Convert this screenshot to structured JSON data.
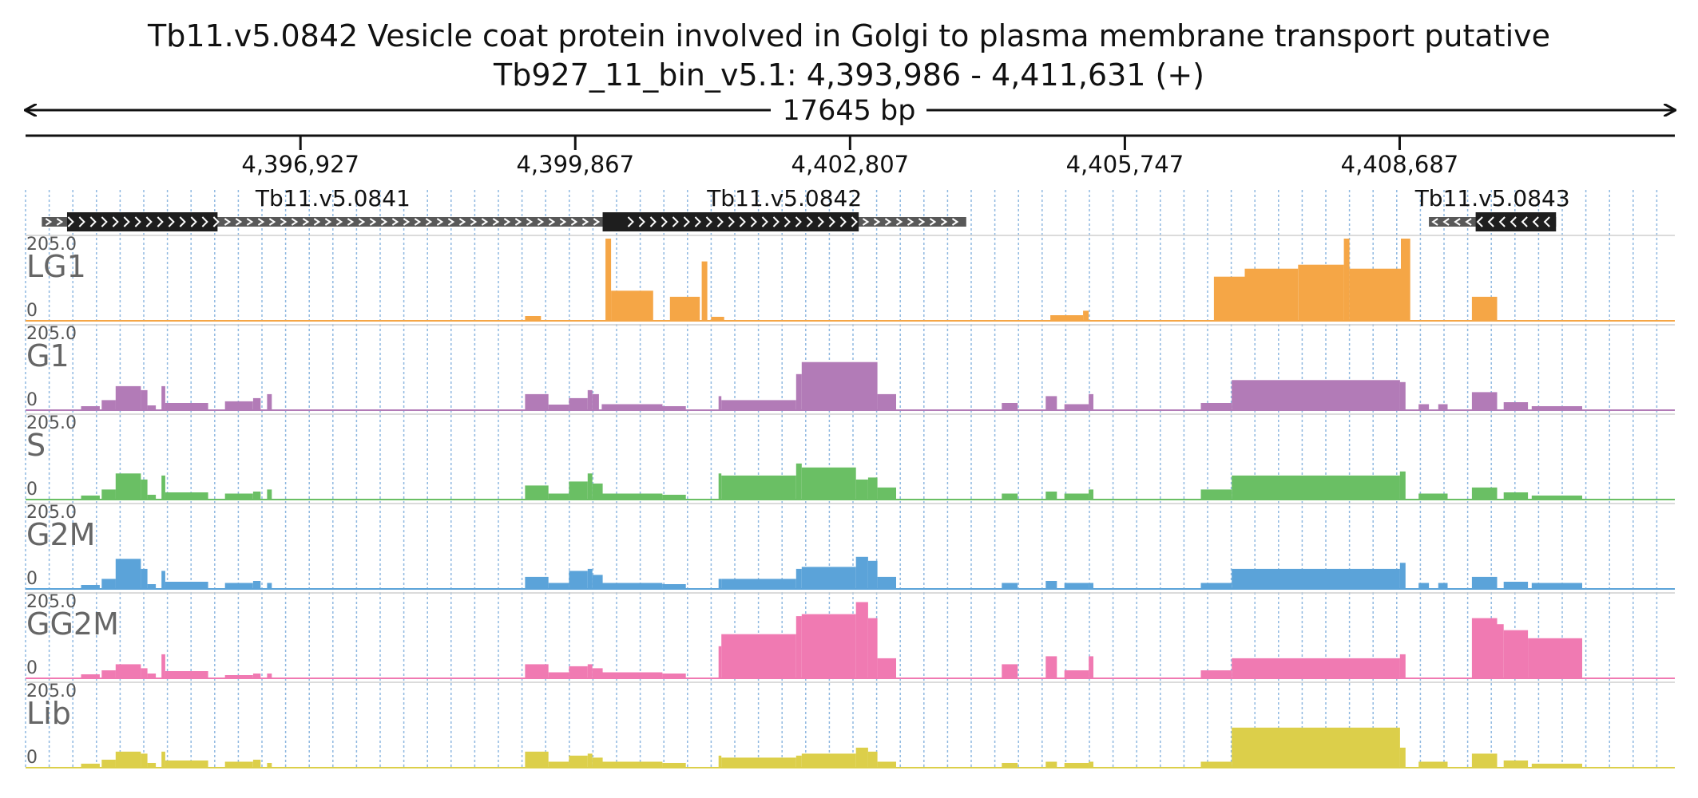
{
  "header": {
    "title": "Tb11.v5.0842  Vesicle coat protein involved in Golgi to plasma membrane transport  putative",
    "locus": "Tb927_11_bin_v5.1: 4,393,986 - 4,411,631 (+)",
    "span": "17645 bp"
  },
  "ruler": {
    "start": 4393986,
    "end": 4411631,
    "ticks": [
      {
        "pos": 4396927,
        "label": "4,396,927"
      },
      {
        "pos": 4399867,
        "label": "4,399,867"
      },
      {
        "pos": 4402807,
        "label": "4,402,807"
      },
      {
        "pos": 4405747,
        "label": "4,405,747"
      },
      {
        "pos": 4408687,
        "label": "4,408,687"
      }
    ]
  },
  "genes": [
    {
      "name": "Tb11.v5.0841",
      "strand": "+",
      "utr": [
        4394160,
        4400390
      ],
      "cds": [
        4394430,
        4396040
      ]
    },
    {
      "name": "Tb11.v5.0842",
      "strand": "+",
      "utr": [
        4400390,
        4404050
      ],
      "cds": [
        4400160,
        4402900
      ]
    },
    {
      "name": "Tb11.v5.0843",
      "strand": "-",
      "utr": [
        4409000,
        4410360
      ],
      "cds": [
        4409500,
        4410360
      ]
    }
  ],
  "colors": {
    "LG1": "#f5a646",
    "G1": "#b27bb7",
    "S": "#6abf64",
    "G2M": "#5ba3d9",
    "GG2M": "#f07ab2",
    "Lib": "#dccf4a",
    "gene_cds": "#1e1e1e",
    "gene_utr": "#585858",
    "grid": "#8fb8e0"
  },
  "tracks": [
    {
      "name": "LG1",
      "ymax": "205.0",
      "ymin": "0"
    },
    {
      "name": "G1",
      "ymax": "205.0",
      "ymin": "0"
    },
    {
      "name": "S",
      "ymax": "205.0",
      "ymin": "0"
    },
    {
      "name": "G2M",
      "ymax": "205.0",
      "ymin": "0"
    },
    {
      "name": "GG2M",
      "ymax": "205.0",
      "ymin": "0"
    },
    {
      "name": "Lib",
      "ymax": "205.0",
      "ymin": "0"
    }
  ],
  "coverage": {
    "LG1": [
      [
        4399330,
        4399500,
        12
      ],
      [
        4400190,
        4400250,
        205
      ],
      [
        4400250,
        4400700,
        75
      ],
      [
        4400880,
        4401200,
        60
      ],
      [
        4401220,
        4401280,
        148
      ],
      [
        4401320,
        4401460,
        10
      ],
      [
        4404950,
        4405300,
        14
      ],
      [
        4405300,
        4405360,
        25
      ],
      [
        4406700,
        4407030,
        110
      ],
      [
        4407030,
        4407600,
        130
      ],
      [
        4407600,
        4408090,
        140
      ],
      [
        4408090,
        4408150,
        205
      ],
      [
        4408150,
        4408700,
        130
      ],
      [
        4408700,
        4408800,
        205
      ],
      [
        4409460,
        4409730,
        60
      ]
    ],
    "G1": [
      [
        4394580,
        4394780,
        10
      ],
      [
        4394800,
        4394950,
        25
      ],
      [
        4394950,
        4395220,
        60
      ],
      [
        4395220,
        4395290,
        50
      ],
      [
        4395290,
        4395380,
        12
      ],
      [
        4395440,
        4395480,
        60
      ],
      [
        4395480,
        4395940,
        18
      ],
      [
        4396120,
        4396420,
        22
      ],
      [
        4396420,
        4396500,
        30
      ],
      [
        4396570,
        4396620,
        40
      ],
      [
        4399330,
        4399580,
        40
      ],
      [
        4399580,
        4399800,
        14
      ],
      [
        4399800,
        4400000,
        30
      ],
      [
        4400000,
        4400050,
        50
      ],
      [
        4400050,
        4400120,
        40
      ],
      [
        4400150,
        4400800,
        15
      ],
      [
        4400800,
        4401050,
        10
      ],
      [
        4401400,
        4401430,
        35
      ],
      [
        4401430,
        4402230,
        25
      ],
      [
        4402230,
        4402290,
        90
      ],
      [
        4402290,
        4403100,
        120
      ],
      [
        4403100,
        4403300,
        40
      ],
      [
        4404430,
        4404600,
        18
      ],
      [
        4404900,
        4405020,
        35
      ],
      [
        4405100,
        4405360,
        15
      ],
      [
        4405360,
        4405410,
        40
      ],
      [
        4406560,
        4406890,
        18
      ],
      [
        4406890,
        4408690,
        75
      ],
      [
        4408690,
        4408750,
        70
      ],
      [
        4408890,
        4409000,
        15
      ],
      [
        4409100,
        4409200,
        15
      ],
      [
        4409460,
        4409730,
        45
      ],
      [
        4409800,
        4410060,
        20
      ],
      [
        4410100,
        4410640,
        10
      ]
    ],
    "S": [
      [
        4394580,
        4394780,
        10
      ],
      [
        4394800,
        4394950,
        25
      ],
      [
        4394950,
        4395220,
        65
      ],
      [
        4395220,
        4395290,
        50
      ],
      [
        4395290,
        4395380,
        12
      ],
      [
        4395440,
        4395480,
        60
      ],
      [
        4395480,
        4395940,
        18
      ],
      [
        4396120,
        4396420,
        15
      ],
      [
        4396420,
        4396500,
        20
      ],
      [
        4396570,
        4396620,
        25
      ],
      [
        4399330,
        4399580,
        35
      ],
      [
        4399580,
        4399800,
        15
      ],
      [
        4399800,
        4400000,
        45
      ],
      [
        4400000,
        4400050,
        65
      ],
      [
        4400050,
        4400160,
        40
      ],
      [
        4400160,
        4400800,
        15
      ],
      [
        4400800,
        4401050,
        12
      ],
      [
        4401400,
        4401430,
        65
      ],
      [
        4401430,
        4402230,
        60
      ],
      [
        4402230,
        4402290,
        90
      ],
      [
        4402290,
        4402870,
        80
      ],
      [
        4402870,
        4403000,
        50
      ],
      [
        4403000,
        4403100,
        55
      ],
      [
        4403100,
        4403300,
        30
      ],
      [
        4404430,
        4404600,
        15
      ],
      [
        4404900,
        4405020,
        20
      ],
      [
        4405100,
        4405360,
        15
      ],
      [
        4405360,
        4405410,
        25
      ],
      [
        4406560,
        4406890,
        25
      ],
      [
        4406890,
        4408690,
        60
      ],
      [
        4408690,
        4408750,
        70
      ],
      [
        4408890,
        4409200,
        15
      ],
      [
        4409460,
        4409730,
        30
      ],
      [
        4409800,
        4410060,
        18
      ],
      [
        4410100,
        4410640,
        10
      ]
    ],
    "G2M": [
      [
        4394580,
        4394780,
        10
      ],
      [
        4394800,
        4394950,
        25
      ],
      [
        4394950,
        4395220,
        75
      ],
      [
        4395220,
        4395290,
        50
      ],
      [
        4395290,
        4395380,
        12
      ],
      [
        4395440,
        4395480,
        45
      ],
      [
        4395480,
        4395940,
        18
      ],
      [
        4396120,
        4396420,
        15
      ],
      [
        4396420,
        4396500,
        20
      ],
      [
        4396570,
        4396620,
        15
      ],
      [
        4399330,
        4399580,
        30
      ],
      [
        4399580,
        4399800,
        15
      ],
      [
        4399800,
        4400000,
        45
      ],
      [
        4400000,
        4400050,
        50
      ],
      [
        4400050,
        4400160,
        35
      ],
      [
        4400160,
        4400800,
        15
      ],
      [
        4400800,
        4401050,
        12
      ],
      [
        4401400,
        4401430,
        25
      ],
      [
        4401430,
        4402230,
        25
      ],
      [
        4402230,
        4402290,
        50
      ],
      [
        4402290,
        4402870,
        55
      ],
      [
        4402870,
        4403000,
        80
      ],
      [
        4403000,
        4403100,
        70
      ],
      [
        4403100,
        4403300,
        30
      ],
      [
        4404430,
        4404600,
        15
      ],
      [
        4404900,
        4405020,
        20
      ],
      [
        4405100,
        4405360,
        15
      ],
      [
        4405360,
        4405410,
        15
      ],
      [
        4406560,
        4406890,
        15
      ],
      [
        4406890,
        4408690,
        50
      ],
      [
        4408690,
        4408750,
        65
      ],
      [
        4408890,
        4409000,
        15
      ],
      [
        4409100,
        4409200,
        15
      ],
      [
        4409460,
        4409730,
        30
      ],
      [
        4409800,
        4410060,
        18
      ],
      [
        4410100,
        4410640,
        15
      ]
    ],
    "GG2M": [
      [
        4394580,
        4394780,
        10
      ],
      [
        4394800,
        4394950,
        20
      ],
      [
        4394950,
        4395220,
        35
      ],
      [
        4395220,
        4395290,
        25
      ],
      [
        4395290,
        4395380,
        12
      ],
      [
        4395440,
        4395480,
        60
      ],
      [
        4395480,
        4395940,
        18
      ],
      [
        4396120,
        4396420,
        8
      ],
      [
        4396420,
        4396500,
        12
      ],
      [
        4396570,
        4396620,
        12
      ],
      [
        4399330,
        4399580,
        35
      ],
      [
        4399580,
        4399800,
        15
      ],
      [
        4399800,
        4400000,
        30
      ],
      [
        4400000,
        4400050,
        35
      ],
      [
        4400050,
        4400160,
        25
      ],
      [
        4400160,
        4400800,
        15
      ],
      [
        4400800,
        4401050,
        12
      ],
      [
        4401400,
        4401430,
        80
      ],
      [
        4401430,
        4402230,
        110
      ],
      [
        4402230,
        4402290,
        155
      ],
      [
        4402290,
        4402870,
        160
      ],
      [
        4402870,
        4403000,
        190
      ],
      [
        4403000,
        4403100,
        150
      ],
      [
        4403100,
        4403300,
        50
      ],
      [
        4404430,
        4404600,
        35
      ],
      [
        4404900,
        4405020,
        55
      ],
      [
        4405100,
        4405360,
        20
      ],
      [
        4405360,
        4405410,
        55
      ],
      [
        4406560,
        4406890,
        20
      ],
      [
        4406890,
        4408690,
        50
      ],
      [
        4408690,
        4408750,
        60
      ],
      [
        4409460,
        4409730,
        150
      ],
      [
        4409730,
        4409800,
        135
      ],
      [
        4409800,
        4410060,
        120
      ],
      [
        4410060,
        4410640,
        100
      ]
    ],
    "Lib": [
      [
        4394580,
        4394780,
        10
      ],
      [
        4394800,
        4394950,
        20
      ],
      [
        4394950,
        4395220,
        40
      ],
      [
        4395220,
        4395290,
        35
      ],
      [
        4395290,
        4395380,
        12
      ],
      [
        4395440,
        4395480,
        40
      ],
      [
        4395480,
        4395940,
        18
      ],
      [
        4396120,
        4396420,
        15
      ],
      [
        4396420,
        4396500,
        20
      ],
      [
        4396570,
        4396620,
        12
      ],
      [
        4399330,
        4399580,
        40
      ],
      [
        4399580,
        4399800,
        15
      ],
      [
        4399800,
        4400000,
        30
      ],
      [
        4400000,
        4400050,
        35
      ],
      [
        4400050,
        4400160,
        25
      ],
      [
        4400160,
        4400800,
        15
      ],
      [
        4400800,
        4401050,
        12
      ],
      [
        4401400,
        4401430,
        30
      ],
      [
        4401430,
        4402230,
        25
      ],
      [
        4402230,
        4402290,
        30
      ],
      [
        4402290,
        4402870,
        35
      ],
      [
        4402870,
        4403000,
        50
      ],
      [
        4403000,
        4403100,
        40
      ],
      [
        4403100,
        4403300,
        15
      ],
      [
        4404430,
        4404600,
        12
      ],
      [
        4404900,
        4405020,
        15
      ],
      [
        4405100,
        4405360,
        12
      ],
      [
        4405360,
        4405410,
        15
      ],
      [
        4406560,
        4406890,
        15
      ],
      [
        4406890,
        4408690,
        100
      ],
      [
        4408690,
        4408750,
        50
      ],
      [
        4408890,
        4409200,
        15
      ],
      [
        4409460,
        4409730,
        35
      ],
      [
        4409800,
        4410060,
        18
      ],
      [
        4410100,
        4410640,
        10
      ]
    ]
  }
}
